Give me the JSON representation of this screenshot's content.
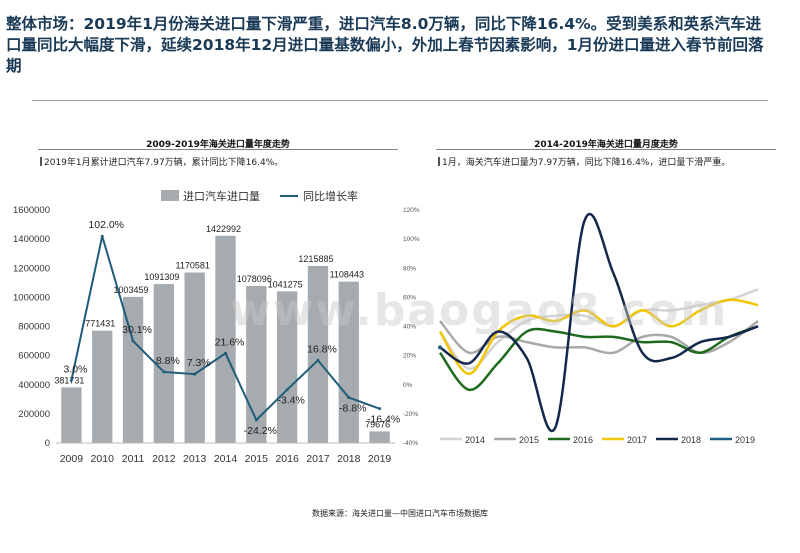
{
  "headline": "整体市场：2019年1月份海关进口量下滑严重，进口汽车8.0万辆，同比下降16.4%。受到美系和英系汽车进口量同比大幅度下滑，延续2018年12月进口量基数偏小，外加上春节因素影响，1月份进口量进入春节前回落期",
  "source": "数据来源：海关进口量—中国进口汽车市场数据库",
  "watermark": "www.baogao8.com",
  "chart_data": [
    {
      "type": "bar",
      "title": "2009-2019年海关进口量年度走势",
      "note": "2019年1月累计进口汽车7.97万辆，累计同比下降16.4%。",
      "categories": [
        "2009",
        "2010",
        "2011",
        "2012",
        "2013",
        "2014",
        "2015",
        "2016",
        "2017",
        "2018",
        "2019"
      ],
      "series": [
        {
          "name": "进口汽车进口量",
          "type": "bar",
          "axis": "left",
          "color": "#a6abb0",
          "values": [
            381731,
            771431,
            1003459,
            1091309,
            1170581,
            1422992,
            1078096,
            1041275,
            1215885,
            1108443,
            79676
          ],
          "labels": [
            "381731",
            "771431",
            "1003459",
            "1091309",
            "1170581",
            "1422992",
            "1078096",
            "1041275",
            "1215885",
            "1108443",
            "79676"
          ]
        },
        {
          "name": "同比增长率",
          "type": "line",
          "axis": "right",
          "color": "#1f5c7a",
          "values": [
            3.0,
            102.0,
            30.1,
            8.8,
            7.3,
            21.6,
            -24.2,
            -3.4,
            16.8,
            -8.8,
            -16.4
          ],
          "labels": [
            "3.0%",
            "102.0%",
            "30.1%",
            "8.8%",
            "7.3%",
            "21.6%",
            "-24.2%",
            "-3.4%",
            "16.8%",
            "-8.8%",
            "-16.4%"
          ]
        }
      ],
      "y_left": {
        "min": 0,
        "max": 1600000,
        "ticks": [
          "0",
          "200000",
          "400000",
          "600000",
          "800000",
          "1000000",
          "1200000",
          "1400000",
          "1600000"
        ]
      },
      "y_right": {
        "min": -40,
        "max": 120,
        "ticks": [
          "-40%",
          "-20%",
          "0%",
          "20%",
          "40%",
          "60%",
          "80%",
          "100%",
          "120%"
        ]
      },
      "legend_position": "top"
    },
    {
      "type": "line",
      "title": "2014-2019年海关进口量月度走势",
      "note": "1月，海关汽车进口量为7.97万辆，同比下降16.4%，进口量下滑严重。",
      "series": [
        {
          "name": "2014",
          "color": "#d4d4d4",
          "values": [
            9.5,
            6.0,
            8.5,
            10.5,
            11.0,
            11.0,
            10.0,
            11.5,
            11.5,
            12.0,
            12.5,
            13.5
          ]
        },
        {
          "name": "2015",
          "color": "#a9a9a9",
          "values": [
            10.5,
            7.5,
            9.0,
            8.5,
            8.0,
            8.0,
            7.5,
            9.0,
            9.0,
            7.5,
            8.5,
            10.5
          ]
        },
        {
          "name": "2016",
          "color": "#1e6b1e",
          "values": [
            7.5,
            4.0,
            6.5,
            9.5,
            9.5,
            9.0,
            9.0,
            8.5,
            8.5,
            7.5,
            9.0,
            10.0
          ]
        },
        {
          "name": "2017",
          "color": "#f2c500",
          "values": [
            9.5,
            5.5,
            9.5,
            11.0,
            10.5,
            11.5,
            10.0,
            11.5,
            10.0,
            11.5,
            12.5,
            12.0
          ]
        },
        {
          "name": "2018",
          "color": "#14284b",
          "values": [
            8.0,
            6.5,
            9.5,
            7.0,
            0.5,
            20.0,
            15.0,
            7.5,
            7.0,
            8.5,
            9.0,
            10.0
          ]
        },
        {
          "name": "2019",
          "color": "#1f6080",
          "values": [
            8.0
          ]
        }
      ],
      "legend_position": "bottom"
    }
  ]
}
